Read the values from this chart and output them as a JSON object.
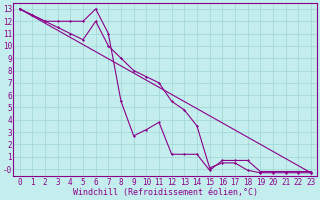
{
  "xlabel": "Windchill (Refroidissement éolien,°C)",
  "bg_color": "#c4eeed",
  "grid_color": "#9ed6d4",
  "line_color": "#8b008b",
  "xlim": [
    -0.5,
    23.5
  ],
  "ylim": [
    -0.6,
    13.5
  ],
  "xticks": [
    0,
    1,
    2,
    3,
    4,
    5,
    6,
    7,
    8,
    9,
    10,
    11,
    12,
    13,
    14,
    15,
    16,
    17,
    18,
    19,
    20,
    21,
    22,
    23
  ],
  "yticks": [
    0,
    1,
    2,
    3,
    4,
    5,
    6,
    7,
    8,
    9,
    10,
    11,
    12,
    13
  ],
  "ytick_labels": [
    "-0",
    "1",
    "2",
    "3",
    "4",
    "5",
    "6",
    "7",
    "8",
    "9",
    "10",
    "11",
    "12",
    "13"
  ],
  "line1_x": [
    0,
    1,
    2,
    3,
    4,
    5,
    6,
    7,
    8,
    9,
    10,
    11,
    12,
    13,
    14,
    15,
    16,
    17,
    18,
    19,
    20,
    21,
    22,
    23
  ],
  "line1_y": [
    13,
    12.5,
    12,
    12,
    12,
    12,
    13,
    11,
    5.5,
    2.7,
    3.2,
    3.8,
    1.2,
    1.2,
    1.2,
    -0.1,
    0.7,
    0.7,
    0.7,
    -0.2,
    -0.2,
    -0.2,
    -0.2,
    -0.2
  ],
  "line2_x": [
    0,
    1,
    2,
    3,
    4,
    5,
    6,
    7,
    8,
    9,
    10,
    11,
    12,
    13,
    14,
    15,
    16,
    17,
    18,
    19,
    20,
    21,
    22,
    23
  ],
  "line2_y": [
    13,
    12.5,
    12,
    11.5,
    11,
    10.5,
    12,
    10,
    9,
    8,
    7.5,
    7,
    5.5,
    4.8,
    3.5,
    0.1,
    0.5,
    0.5,
    -0.1,
    -0.3,
    -0.3,
    -0.3,
    -0.3,
    -0.3
  ],
  "line3_x": [
    0,
    23
  ],
  "line3_y": [
    13,
    -0.3
  ],
  "font_family": "monospace",
  "font_size_tick": 5.5,
  "font_size_label": 6,
  "marker": "D",
  "marker_size": 1.5,
  "linewidth": 0.8
}
